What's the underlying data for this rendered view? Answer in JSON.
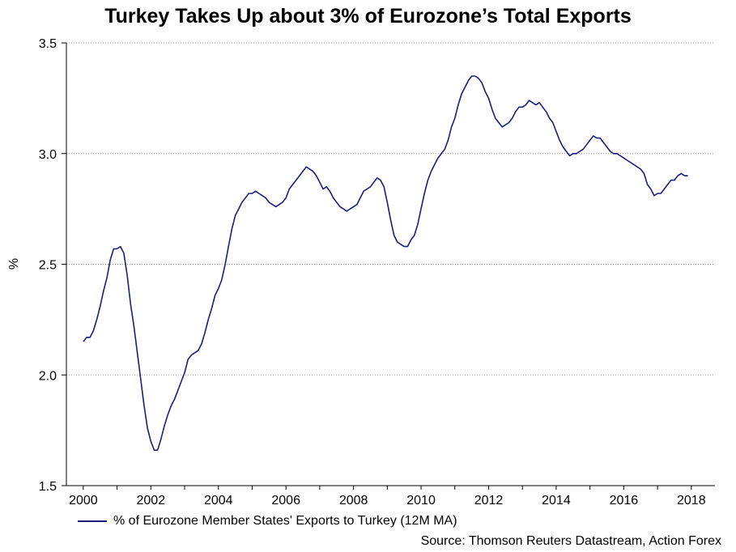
{
  "chart_data": {
    "type": "line",
    "title": "Turkey Takes Up about 3% of Eurozone’s Total Exports",
    "ylabel": "%",
    "xlabel": "",
    "ylim": [
      1.5,
      3.5
    ],
    "xlim": [
      1999.5,
      2018.7
    ],
    "yticks": [
      "1.5",
      "2.0",
      "2.5",
      "3.0",
      "3.5"
    ],
    "xticks": [
      "2000",
      "2002",
      "2004",
      "2006",
      "2008",
      "2010",
      "2012",
      "2014",
      "2016",
      "2018"
    ],
    "grid": "horizontal dotted",
    "legend_position": "bottom-left",
    "series": [
      {
        "name": "% of Eurozone Member States' Exports to Turkey (12M MA)",
        "color": "#1b1f7a",
        "points": [
          [
            2000.0,
            2.15
          ],
          [
            2000.1,
            2.17
          ],
          [
            2000.2,
            2.17
          ],
          [
            2000.3,
            2.2
          ],
          [
            2000.4,
            2.25
          ],
          [
            2000.5,
            2.31
          ],
          [
            2000.6,
            2.38
          ],
          [
            2000.7,
            2.44
          ],
          [
            2000.8,
            2.52
          ],
          [
            2000.9,
            2.57
          ],
          [
            2001.0,
            2.57
          ],
          [
            2001.1,
            2.58
          ],
          [
            2001.2,
            2.55
          ],
          [
            2001.3,
            2.45
          ],
          [
            2001.4,
            2.32
          ],
          [
            2001.5,
            2.22
          ],
          [
            2001.6,
            2.1
          ],
          [
            2001.7,
            1.98
          ],
          [
            2001.8,
            1.86
          ],
          [
            2001.9,
            1.76
          ],
          [
            2002.0,
            1.7
          ],
          [
            2002.1,
            1.66
          ],
          [
            2002.2,
            1.66
          ],
          [
            2002.3,
            1.71
          ],
          [
            2002.4,
            1.77
          ],
          [
            2002.5,
            1.82
          ],
          [
            2002.6,
            1.86
          ],
          [
            2002.7,
            1.89
          ],
          [
            2002.8,
            1.93
          ],
          [
            2002.9,
            1.97
          ],
          [
            2003.0,
            2.01
          ],
          [
            2003.1,
            2.07
          ],
          [
            2003.2,
            2.09
          ],
          [
            2003.3,
            2.1
          ],
          [
            2003.4,
            2.11
          ],
          [
            2003.5,
            2.14
          ],
          [
            2003.6,
            2.19
          ],
          [
            2003.7,
            2.25
          ],
          [
            2003.8,
            2.3
          ],
          [
            2003.9,
            2.36
          ],
          [
            2004.0,
            2.39
          ],
          [
            2004.1,
            2.43
          ],
          [
            2004.2,
            2.5
          ],
          [
            2004.3,
            2.58
          ],
          [
            2004.4,
            2.66
          ],
          [
            2004.5,
            2.72
          ],
          [
            2004.6,
            2.75
          ],
          [
            2004.7,
            2.78
          ],
          [
            2004.8,
            2.8
          ],
          [
            2004.9,
            2.82
          ],
          [
            2005.0,
            2.82
          ],
          [
            2005.1,
            2.83
          ],
          [
            2005.2,
            2.82
          ],
          [
            2005.3,
            2.81
          ],
          [
            2005.4,
            2.8
          ],
          [
            2005.5,
            2.78
          ],
          [
            2005.6,
            2.77
          ],
          [
            2005.7,
            2.76
          ],
          [
            2005.8,
            2.77
          ],
          [
            2005.9,
            2.78
          ],
          [
            2006.0,
            2.8
          ],
          [
            2006.1,
            2.84
          ],
          [
            2006.2,
            2.86
          ],
          [
            2006.3,
            2.88
          ],
          [
            2006.4,
            2.9
          ],
          [
            2006.5,
            2.92
          ],
          [
            2006.6,
            2.94
          ],
          [
            2006.7,
            2.93
          ],
          [
            2006.8,
            2.92
          ],
          [
            2006.9,
            2.9
          ],
          [
            2007.0,
            2.87
          ],
          [
            2007.1,
            2.84
          ],
          [
            2007.2,
            2.85
          ],
          [
            2007.3,
            2.83
          ],
          [
            2007.4,
            2.8
          ],
          [
            2007.5,
            2.78
          ],
          [
            2007.6,
            2.76
          ],
          [
            2007.7,
            2.75
          ],
          [
            2007.8,
            2.74
          ],
          [
            2007.9,
            2.75
          ],
          [
            2008.0,
            2.76
          ],
          [
            2008.1,
            2.77
          ],
          [
            2008.2,
            2.8
          ],
          [
            2008.3,
            2.83
          ],
          [
            2008.4,
            2.84
          ],
          [
            2008.5,
            2.85
          ],
          [
            2008.6,
            2.87
          ],
          [
            2008.7,
            2.89
          ],
          [
            2008.8,
            2.88
          ],
          [
            2008.9,
            2.85
          ],
          [
            2009.0,
            2.78
          ],
          [
            2009.1,
            2.7
          ],
          [
            2009.2,
            2.63
          ],
          [
            2009.3,
            2.6
          ],
          [
            2009.4,
            2.59
          ],
          [
            2009.5,
            2.58
          ],
          [
            2009.6,
            2.58
          ],
          [
            2009.7,
            2.61
          ],
          [
            2009.8,
            2.63
          ],
          [
            2009.9,
            2.68
          ],
          [
            2010.0,
            2.75
          ],
          [
            2010.1,
            2.82
          ],
          [
            2010.2,
            2.88
          ],
          [
            2010.3,
            2.92
          ],
          [
            2010.4,
            2.95
          ],
          [
            2010.5,
            2.98
          ],
          [
            2010.6,
            3.0
          ],
          [
            2010.7,
            3.02
          ],
          [
            2010.8,
            3.06
          ],
          [
            2010.9,
            3.12
          ],
          [
            2011.0,
            3.16
          ],
          [
            2011.1,
            3.22
          ],
          [
            2011.2,
            3.27
          ],
          [
            2011.3,
            3.3
          ],
          [
            2011.4,
            3.33
          ],
          [
            2011.5,
            3.35
          ],
          [
            2011.6,
            3.35
          ],
          [
            2011.7,
            3.34
          ],
          [
            2011.8,
            3.32
          ],
          [
            2011.9,
            3.28
          ],
          [
            2012.0,
            3.25
          ],
          [
            2012.1,
            3.2
          ],
          [
            2012.2,
            3.16
          ],
          [
            2012.3,
            3.14
          ],
          [
            2012.4,
            3.12
          ],
          [
            2012.5,
            3.13
          ],
          [
            2012.6,
            3.14
          ],
          [
            2012.7,
            3.16
          ],
          [
            2012.8,
            3.19
          ],
          [
            2012.9,
            3.21
          ],
          [
            2013.0,
            3.21
          ],
          [
            2013.1,
            3.22
          ],
          [
            2013.2,
            3.24
          ],
          [
            2013.3,
            3.23
          ],
          [
            2013.4,
            3.22
          ],
          [
            2013.5,
            3.23
          ],
          [
            2013.6,
            3.21
          ],
          [
            2013.7,
            3.19
          ],
          [
            2013.8,
            3.16
          ],
          [
            2013.9,
            3.14
          ],
          [
            2014.0,
            3.1
          ],
          [
            2014.1,
            3.06
          ],
          [
            2014.2,
            3.03
          ],
          [
            2014.3,
            3.01
          ],
          [
            2014.4,
            2.99
          ],
          [
            2014.5,
            3.0
          ],
          [
            2014.6,
            3.0
          ],
          [
            2014.7,
            3.01
          ],
          [
            2014.8,
            3.02
          ],
          [
            2014.9,
            3.04
          ],
          [
            2015.0,
            3.06
          ],
          [
            2015.1,
            3.08
          ],
          [
            2015.2,
            3.07
          ],
          [
            2015.3,
            3.07
          ],
          [
            2015.4,
            3.05
          ],
          [
            2015.5,
            3.03
          ],
          [
            2015.6,
            3.01
          ],
          [
            2015.7,
            3.0
          ],
          [
            2015.8,
            3.0
          ],
          [
            2015.9,
            2.99
          ],
          [
            2016.0,
            2.98
          ],
          [
            2016.1,
            2.97
          ],
          [
            2016.2,
            2.96
          ],
          [
            2016.3,
            2.95
          ],
          [
            2016.4,
            2.94
          ],
          [
            2016.5,
            2.93
          ],
          [
            2016.6,
            2.91
          ],
          [
            2016.7,
            2.86
          ],
          [
            2016.8,
            2.84
          ],
          [
            2016.9,
            2.81
          ],
          [
            2017.0,
            2.82
          ],
          [
            2017.1,
            2.82
          ],
          [
            2017.2,
            2.84
          ],
          [
            2017.3,
            2.86
          ],
          [
            2017.4,
            2.88
          ],
          [
            2017.5,
            2.88
          ],
          [
            2017.6,
            2.9
          ],
          [
            2017.7,
            2.91
          ],
          [
            2017.8,
            2.9
          ],
          [
            2017.9,
            2.9
          ]
        ]
      }
    ],
    "source": "Source: Thomson Reuters Datastream, Action Forex"
  }
}
